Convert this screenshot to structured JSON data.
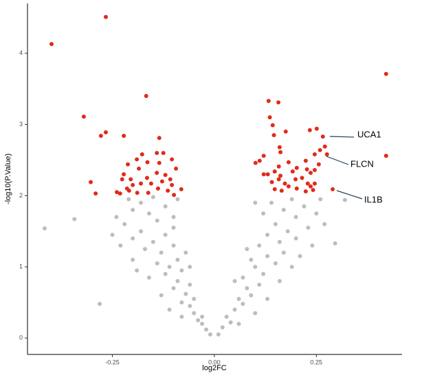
{
  "chart_data": {
    "type": "scatter",
    "xlabel": "log2FC",
    "ylabel": "-log10(P.Value)",
    "xlim": [
      -0.458,
      0.46
    ],
    "ylim": [
      -0.23,
      4.7
    ],
    "xticks": [
      -0.25,
      {
        "value": 0,
        "label": "0.00"
      },
      0.25
    ],
    "yticks": [
      0,
      1,
      2,
      3,
      4
    ],
    "annotations": [
      "UCA1",
      "FLCN",
      "IL1B"
    ],
    "series": [
      {
        "color": "#bdbdbd",
        "x": [
          -0.01,
          -0.02,
          -0.03,
          -0.04,
          -0.05,
          -0.03,
          -0.06,
          -0.08,
          -0.05,
          -0.07,
          -0.1,
          -0.09,
          -0.06,
          -0.12,
          -0.08,
          -0.11,
          -0.14,
          -0.09,
          -0.13,
          -0.17,
          -0.1,
          -0.15,
          -0.2,
          -0.12,
          -0.18,
          -0.1,
          -0.22,
          -0.14,
          -0.16,
          -0.2,
          -0.12,
          -0.18,
          -0.09,
          -0.15,
          -0.24,
          -0.23,
          -0.2,
          -0.16,
          -0.13,
          -0.11,
          -0.08,
          -0.25,
          -0.07,
          -0.06,
          -0.19,
          -0.416,
          -0.343,
          -0.281,
          -0.21,
          -0.1,
          0.01,
          0.02,
          0.04,
          0.03,
          0.05,
          0.07,
          0.06,
          0.09,
          0.08,
          0.11,
          0.07,
          0.12,
          0.1,
          0.15,
          0.09,
          0.13,
          0.17,
          0.11,
          0.16,
          0.2,
          0.13,
          0.18,
          0.23,
          0.15,
          0.2,
          0.12,
          0.17,
          0.22,
          0.14,
          0.19,
          0.25,
          0.24,
          0.19,
          0.16,
          0.13,
          0.1,
          0.06,
          0.27,
          0.08,
          0.21,
          0.32,
          0.296,
          0.1,
          0.26,
          0.05
        ],
        "values": [
          0.05,
          0.12,
          0.2,
          0.25,
          0.35,
          0.3,
          0.45,
          0.5,
          0.55,
          0.62,
          0.7,
          0.8,
          0.75,
          0.9,
          0.95,
          1.0,
          1.05,
          1.1,
          1.2,
          1.25,
          1.3,
          1.35,
          1.4,
          1.45,
          1.5,
          1.55,
          1.6,
          1.65,
          1.75,
          1.8,
          1.85,
          1.9,
          1.95,
          1.98,
          1.7,
          1.3,
          1.1,
          0.85,
          0.6,
          0.4,
          0.3,
          1.45,
          1.2,
          1.0,
          0.95,
          1.54,
          1.67,
          0.48,
          1.95,
          1.7,
          0.05,
          0.15,
          0.22,
          0.3,
          0.4,
          0.48,
          0.55,
          0.6,
          0.7,
          0.75,
          0.85,
          0.9,
          1.0,
          1.05,
          1.1,
          1.15,
          1.2,
          1.3,
          1.35,
          1.4,
          1.45,
          1.5,
          1.55,
          1.6,
          1.7,
          1.75,
          1.8,
          1.85,
          1.9,
          1.95,
          1.75,
          1.3,
          1.0,
          0.8,
          0.55,
          0.35,
          0.2,
          1.6,
          1.25,
          1.15,
          1.94,
          1.33,
          1.9,
          1.95,
          0.8
        ]
      },
      {
        "color": "#e02b1a",
        "x": [
          -0.399,
          -0.266,
          -0.167,
          -0.32,
          -0.266,
          -0.278,
          -0.222,
          -0.135,
          -0.177,
          -0.141,
          -0.125,
          -0.19,
          -0.164,
          -0.104,
          -0.212,
          -0.185,
          -0.135,
          -0.094,
          -0.222,
          -0.205,
          -0.165,
          -0.141,
          -0.12,
          -0.108,
          -0.18,
          -0.155,
          -0.128,
          -0.104,
          -0.081,
          -0.226,
          -0.214,
          -0.189,
          -0.162,
          -0.138,
          -0.114,
          -0.099,
          -0.239,
          -0.231,
          -0.209,
          -0.303,
          -0.291,
          -0.2,
          0.133,
          0.157,
          0.136,
          0.143,
          0.146,
          0.175,
          0.16,
          0.162,
          0.111,
          0.101,
          0.121,
          0.131,
          0.121,
          0.148,
          0.158,
          0.182,
          0.192,
          0.202,
          0.227,
          0.224,
          0.234,
          0.251,
          0.266,
          0.271,
          0.259,
          0.246,
          0.256,
          0.246,
          0.236,
          0.199,
          0.215,
          0.229,
          0.246,
          0.158,
          0.173,
          0.148,
          0.165,
          0.182,
          0.202,
          0.224,
          0.242,
          0.276,
          0.29,
          0.421,
          0.421,
          0.141,
          0.162,
          0.236
        ],
        "values": [
          4.13,
          4.51,
          3.4,
          3.11,
          2.89,
          2.84,
          2.84,
          2.81,
          2.58,
          2.6,
          2.6,
          2.51,
          2.47,
          2.51,
          2.44,
          2.38,
          2.46,
          2.38,
          2.3,
          2.23,
          2.25,
          2.32,
          2.29,
          2.23,
          2.17,
          2.17,
          2.2,
          2.15,
          2.09,
          2.23,
          2.1,
          2.04,
          2.04,
          2.1,
          2.07,
          2.01,
          2.05,
          2.03,
          2.07,
          2.19,
          2.03,
          2.15,
          3.33,
          3.31,
          3.1,
          2.99,
          2.85,
          2.9,
          2.68,
          2.61,
          2.49,
          2.46,
          2.56,
          2.3,
          2.3,
          2.34,
          2.41,
          2.47,
          2.34,
          2.39,
          2.37,
          2.49,
          2.92,
          2.94,
          2.83,
          2.69,
          2.64,
          2.58,
          2.44,
          2.36,
          2.32,
          2.23,
          2.25,
          2.17,
          2.17,
          2.23,
          2.17,
          2.09,
          2.07,
          2.13,
          2.1,
          2.06,
          2.08,
          2.58,
          2.09,
          3.71,
          2.56,
          2.19,
          2.28,
          2.13
        ]
      }
    ]
  }
}
